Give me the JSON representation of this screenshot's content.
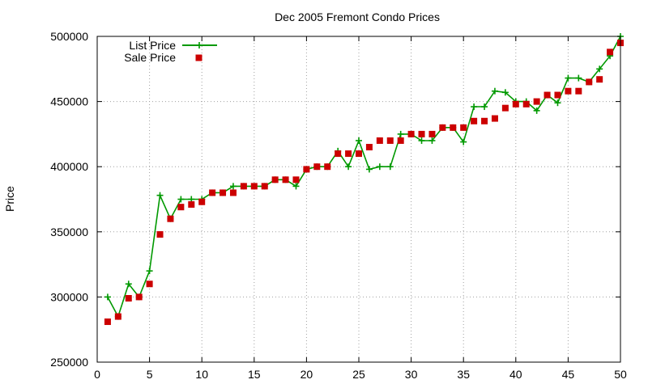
{
  "colors": {
    "list": "#009900",
    "sale": "#cc0000",
    "grid": "#a0a0a0",
    "frame": "#000000"
  },
  "chart_data": {
    "type": "line",
    "title": "Dec 2005 Fremont Condo Prices",
    "xlabel": "",
    "ylabel": "Price",
    "xlim": [
      0,
      50
    ],
    "ylim": [
      250000,
      500000
    ],
    "xticks": [
      0,
      5,
      10,
      15,
      20,
      25,
      30,
      35,
      40,
      45,
      50
    ],
    "yticks": [
      250000,
      300000,
      350000,
      400000,
      450000,
      500000
    ],
    "grid": true,
    "legend_position": "top-left",
    "series": [
      {
        "name": "List Price",
        "style": "line-with-plus-markers",
        "x": [
          1,
          2,
          3,
          4,
          5,
          6,
          7,
          8,
          9,
          10,
          11,
          12,
          13,
          14,
          15,
          16,
          17,
          18,
          19,
          20,
          21,
          22,
          23,
          24,
          25,
          26,
          27,
          28,
          29,
          30,
          31,
          32,
          33,
          34,
          35,
          36,
          37,
          38,
          39,
          40,
          41,
          42,
          43,
          44,
          45,
          46,
          47,
          48,
          49,
          50
        ],
        "y": [
          300000,
          285000,
          310000,
          300000,
          320000,
          378000,
          360000,
          375000,
          375000,
          375000,
          380000,
          380000,
          385000,
          385000,
          385000,
          385000,
          390000,
          390000,
          385000,
          398000,
          400000,
          400000,
          412000,
          400000,
          420000,
          398000,
          400000,
          400000,
          425000,
          425000,
          420000,
          420000,
          430000,
          430000,
          419000,
          446000,
          446000,
          458000,
          457000,
          450000,
          450000,
          443000,
          455000,
          449000,
          468000,
          468000,
          465000,
          475000,
          485000,
          500000
        ]
      },
      {
        "name": "Sale Price",
        "style": "square-markers",
        "x": [
          1,
          2,
          3,
          4,
          5,
          6,
          7,
          8,
          9,
          10,
          11,
          12,
          13,
          14,
          15,
          16,
          17,
          18,
          19,
          20,
          21,
          22,
          23,
          24,
          25,
          26,
          27,
          28,
          29,
          30,
          31,
          32,
          33,
          34,
          35,
          36,
          37,
          38,
          39,
          40,
          41,
          42,
          43,
          44,
          45,
          46,
          47,
          48,
          49,
          50
        ],
        "y": [
          281000,
          285000,
          299000,
          300000,
          310000,
          348000,
          360000,
          369000,
          371000,
          373000,
          380000,
          380000,
          380000,
          385000,
          385000,
          385000,
          390000,
          390000,
          390000,
          398000,
          400000,
          400000,
          410000,
          410000,
          410000,
          415000,
          420000,
          420000,
          420000,
          425000,
          425000,
          425000,
          430000,
          430000,
          430000,
          435000,
          435000,
          437000,
          445000,
          448000,
          448000,
          450000,
          455000,
          455000,
          458000,
          458000,
          465000,
          467000,
          488000,
          495000
        ]
      }
    ]
  }
}
